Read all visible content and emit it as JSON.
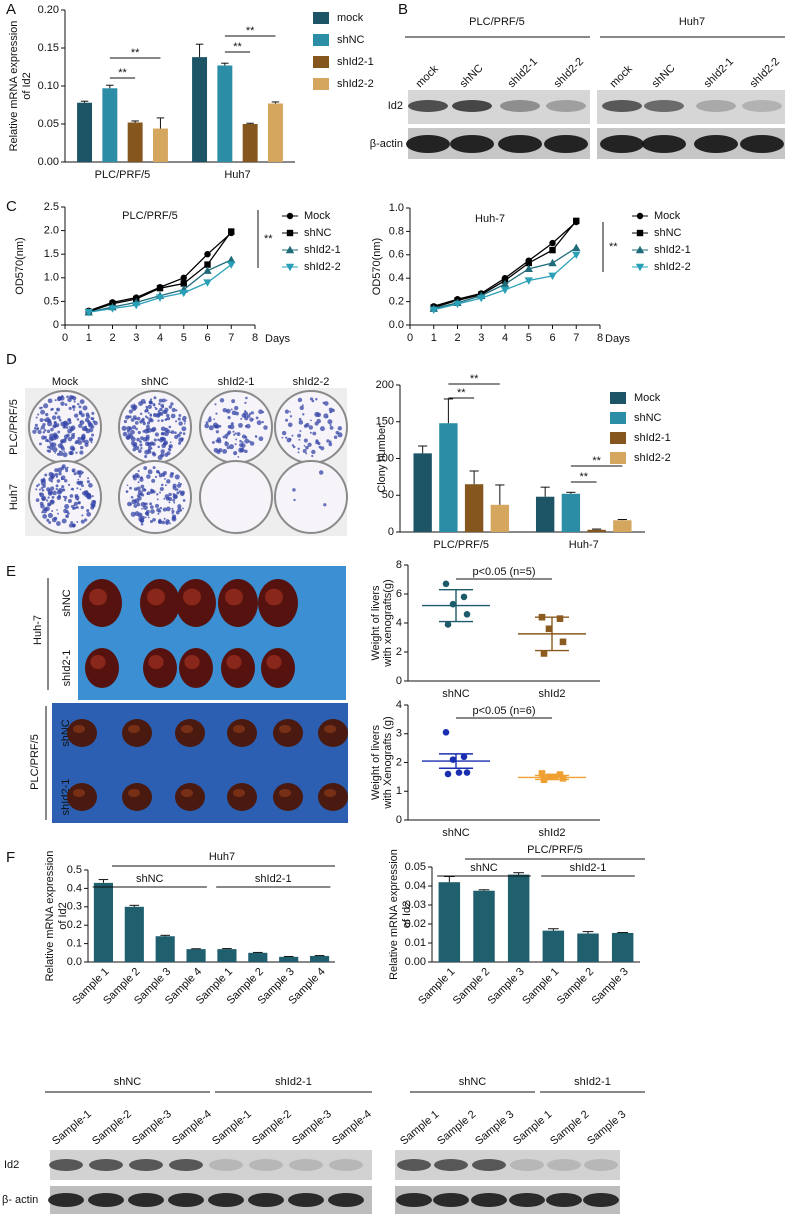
{
  "chart_data": [
    {
      "type": "bar",
      "ylabel": [
        "Relative mRNA expression",
        "of Id2"
      ],
      "categories": [
        "PLC/PRF/5",
        "Huh7"
      ],
      "series": [
        {
          "name": "mock",
          "color": "#1d5566",
          "values": [
            0.078,
            0.138
          ],
          "errors": [
            0.002,
            0.017
          ]
        },
        {
          "name": "shNC",
          "color": "#2b8ea6",
          "values": [
            0.097,
            0.127
          ],
          "errors": [
            0.004,
            0.003
          ]
        },
        {
          "name": "shId2-1",
          "color": "#85571f",
          "values": [
            0.052,
            0.05
          ],
          "errors": [
            0.002,
            0.001
          ]
        },
        {
          "name": "shId2-2",
          "color": "#d4a65e",
          "values": [
            0.044,
            0.077
          ],
          "errors": [
            0.014,
            0.002
          ]
        }
      ],
      "ylim": [
        0,
        0.2
      ],
      "yticks": [
        {
          "value": 0,
          "label": "0.00"
        },
        {
          "value": 0.05,
          "label": "0.05"
        },
        {
          "value": 0.1,
          "label": "0.10"
        },
        {
          "value": 0.15,
          "label": "0.15"
        },
        {
          "value": 0.2,
          "label": "0.20"
        }
      ],
      "annotations": [
        "**",
        "**",
        "**",
        "**"
      ]
    },
    {
      "type": "line",
      "title": "PLC/PRF/5",
      "ylabel": "OD570(nm)",
      "xlabel": "Days",
      "x": [
        1,
        2,
        3,
        4,
        5,
        6,
        7
      ],
      "series": [
        {
          "name": "Mock",
          "color": "#000000",
          "marker": "circle",
          "values": [
            0.3,
            0.48,
            0.58,
            0.8,
            1.0,
            1.5,
            1.95
          ]
        },
        {
          "name": "shNC",
          "color": "#000000",
          "marker": "square",
          "values": [
            0.28,
            0.45,
            0.55,
            0.78,
            0.88,
            1.28,
            1.98
          ]
        },
        {
          "name": "shId2-1",
          "color": "#1f6b7a",
          "marker": "triangle-up",
          "values": [
            0.27,
            0.38,
            0.48,
            0.62,
            0.75,
            1.15,
            1.38
          ]
        },
        {
          "name": "shId2-2",
          "color": "#2aa0b8",
          "marker": "triangle-down",
          "values": [
            0.27,
            0.35,
            0.42,
            0.58,
            0.68,
            0.9,
            1.28
          ]
        }
      ],
      "xlim": [
        0,
        8
      ],
      "xticks": [
        0,
        1,
        2,
        3,
        4,
        5,
        6,
        7,
        8
      ],
      "ylim": [
        0,
        2.5
      ],
      "yticks": [
        0,
        0.5,
        {
          "value": 1,
          "label": "1.0"
        },
        1.5,
        {
          "value": 2,
          "label": "2.0"
        },
        2.5
      ],
      "annotations": [
        "**"
      ]
    },
    {
      "type": "line",
      "title": "Huh-7",
      "ylabel": "OD570(nm)",
      "xlabel": "Days",
      "x": [
        1,
        2,
        3,
        4,
        5,
        6,
        7
      ],
      "series": [
        {
          "name": "Mock",
          "color": "#000000",
          "marker": "circle",
          "values": [
            0.16,
            0.22,
            0.27,
            0.4,
            0.55,
            0.7,
            0.88
          ]
        },
        {
          "name": "shNC",
          "color": "#000000",
          "marker": "square",
          "values": [
            0.15,
            0.21,
            0.26,
            0.38,
            0.53,
            0.64,
            0.89
          ]
        },
        {
          "name": "shId2-1",
          "color": "#1f6b7a",
          "marker": "triangle-up",
          "values": [
            0.14,
            0.19,
            0.25,
            0.35,
            0.48,
            0.53,
            0.66
          ]
        },
        {
          "name": "shId2-2",
          "color": "#2aa0b8",
          "marker": "triangle-down",
          "values": [
            0.13,
            0.18,
            0.23,
            0.3,
            0.38,
            0.42,
            0.6
          ]
        }
      ],
      "xlim": [
        0,
        8
      ],
      "xticks": [
        0,
        1,
        2,
        3,
        4,
        5,
        6,
        7,
        8
      ],
      "ylim": [
        0,
        1
      ],
      "yticks": [
        {
          "value": 0,
          "label": "0.0"
        },
        0.2,
        0.4,
        0.6,
        0.8,
        {
          "value": 1,
          "label": "1.0"
        }
      ],
      "annotations": [
        "**"
      ]
    },
    {
      "type": "bar",
      "ylabel": "Clony number",
      "categories": [
        "PLC/PRF/5",
        "Huh-7"
      ],
      "series": [
        {
          "name": "Mock",
          "color": "#1d5566",
          "values": [
            107,
            48
          ],
          "errors": [
            10,
            13
          ]
        },
        {
          "name": "shNC",
          "color": "#2b8ea6",
          "values": [
            148,
            52
          ],
          "errors": [
            33,
            2
          ]
        },
        {
          "name": "shId2-1",
          "color": "#85571f",
          "values": [
            65,
            3
          ],
          "errors": [
            18,
            1
          ]
        },
        {
          "name": "shId2-2",
          "color": "#d4a65e",
          "values": [
            37,
            16
          ],
          "errors": [
            27,
            1
          ]
        }
      ],
      "ylim": [
        0,
        200
      ],
      "yticks": [
        0,
        50,
        100,
        150,
        200
      ],
      "annotations": [
        "**",
        "**",
        "**",
        "**"
      ]
    },
    {
      "type": "dot",
      "ylabel": [
        "Weight of livers",
        "with xenografts(g)"
      ],
      "categories": [
        "shNC",
        "shId2"
      ],
      "groups": [
        {
          "color": "#1d5a6a",
          "marker": "circle",
          "values": [
            6.7,
            5.8,
            5.3,
            4.6,
            3.9
          ],
          "mean": 5.2,
          "error": 1.1
        },
        {
          "color": "#8b5a1e",
          "marker": "square",
          "values": [
            4.4,
            4.3,
            3.6,
            2.7,
            1.9
          ],
          "mean": 3.25,
          "error": 1.15
        }
      ],
      "ylim": [
        0,
        8
      ],
      "yticks": [
        0,
        2,
        4,
        6,
        8
      ],
      "annotations": [
        "p<0.05 (n=5)"
      ]
    },
    {
      "type": "dot",
      "ylabel": [
        "Weight of livers",
        "with Xenografts (g)"
      ],
      "categories": [
        "shNC",
        "shId2"
      ],
      "groups": [
        {
          "color": "#1a2fb0",
          "marker": "circle",
          "values": [
            3.05,
            2.2,
            2.1,
            1.65,
            1.6,
            1.65
          ],
          "mean": 2.05,
          "error": 0.25
        },
        {
          "color": "#f0a030",
          "marker": "square",
          "values": [
            1.62,
            1.58,
            1.5,
            1.45,
            1.4,
            1.5
          ],
          "mean": 1.48,
          "error": 0.07
        }
      ],
      "ylim": [
        0,
        4
      ],
      "yticks": [
        0,
        1,
        2,
        3,
        4
      ],
      "annotations": [
        "p<0.05 (n=6)"
      ]
    },
    {
      "type": "bar",
      "title": "Huh7",
      "ylabel": [
        "Relative mRNA expression",
        "of Id2"
      ],
      "groups": [
        "shNC",
        "shId2-1"
      ],
      "color": "#1f5f6e",
      "categories": [
        "Sample 1",
        "Sample 2",
        "Sample 3",
        "Sample 4",
        "Sample 1",
        "Sample 2",
        "Sample 3",
        "Sample 4"
      ],
      "values": [
        0.43,
        0.3,
        0.14,
        0.07,
        0.07,
        0.05,
        0.028,
        0.033
      ],
      "errors": [
        0.018,
        0.008,
        0.005,
        0.002,
        0.003,
        0.002,
        0.002,
        0.002
      ],
      "ylim": [
        0,
        0.5
      ],
      "yticks": [
        {
          "value": 0,
          "label": "0.0"
        },
        0.1,
        0.2,
        0.3,
        0.4,
        0.5
      ]
    },
    {
      "type": "bar",
      "title": "PLC/PRF/5",
      "ylabel": [
        "Relative mRNA expression",
        "of Id2"
      ],
      "groups": [
        "shNC",
        "shId2-1"
      ],
      "color": "#1f5f6e",
      "categories": [
        "Sample 1",
        "Sample 2",
        "Sample 3",
        "Sample 1",
        "Sample 2",
        "Sample 3"
      ],
      "values": [
        0.042,
        0.0375,
        0.046,
        0.0165,
        0.015,
        0.0153
      ],
      "errors": [
        0.003,
        0.0005,
        0.001,
        0.001,
        0.001,
        0.0002
      ],
      "ylim": [
        0,
        0.05
      ],
      "yticks": [
        {
          "value": 0,
          "label": "0.00"
        },
        0.01,
        0.02,
        0.03,
        0.04,
        0.05
      ]
    }
  ],
  "figure": {
    "panel_letters": [
      "A",
      "B",
      "C",
      "D",
      "E",
      "F"
    ],
    "blot_b": {
      "cell_lines": [
        "PLC/PRF/5",
        "Huh7"
      ],
      "lanes": [
        "mock",
        "shNC",
        "shId2-1",
        "shId2-2",
        "mock",
        "shNC",
        "shId2-1",
        "shId2-2"
      ],
      "rows": [
        "Id2",
        "β-actin"
      ]
    },
    "colony_d": {
      "columns": [
        "Mock",
        "shNC",
        "shId2-1",
        "shId2-2"
      ],
      "rows": [
        "PLC/PRF/5",
        "Huh7"
      ]
    },
    "xenograft_e": [
      {
        "cell_line": "Huh-7",
        "rows": [
          "shNC",
          "shId2-1"
        ]
      },
      {
        "cell_line": "PLC/PRF/5",
        "rows": [
          "shNC",
          "shId2-1"
        ]
      }
    ],
    "blot_f": {
      "left": {
        "groups": [
          "shNC",
          "shId2-1"
        ],
        "lanes": [
          "Sample-1",
          "Sample-2",
          "Sample-3",
          "Sample-4",
          "Sample-1",
          "Sample-2",
          "Sample-3",
          "Sample-4"
        ]
      },
      "right": {
        "groups": [
          "shNC",
          "shId2-1"
        ],
        "lanes": [
          "Sample 1",
          "Sample 2",
          "Sample 3",
          "Sample 1",
          "Sample 2",
          "Sample 3"
        ]
      },
      "rows": [
        "Id2",
        "β- actin"
      ]
    }
  }
}
